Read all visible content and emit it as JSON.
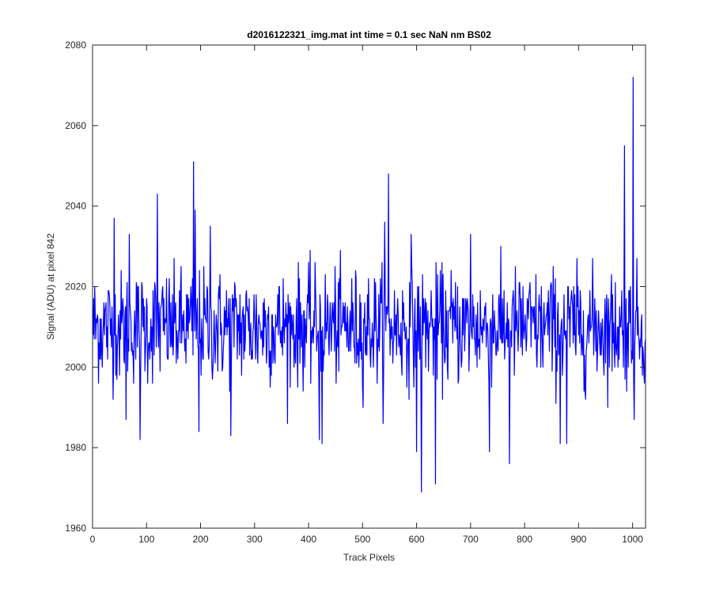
{
  "chart_data": {
    "type": "line",
    "title": "d2016122321_img.mat int time = 0.1 sec  NaN nm BS02",
    "xlabel": "Track Pixels",
    "ylabel": "Signal (ADU) at pixel 842",
    "xlim": [
      0,
      1024
    ],
    "ylim": [
      1960,
      2080
    ],
    "xticks": [
      0,
      100,
      200,
      300,
      400,
      500,
      600,
      700,
      800,
      900,
      1000
    ],
    "yticks": [
      1960,
      1980,
      2000,
      2020,
      2040,
      2060,
      2080
    ],
    "grid": false,
    "series": [
      {
        "color": "#0000ff",
        "x_start": 1,
        "x_step": 1,
        "count": 1024,
        "baseline": 2010,
        "noise_sd": 7,
        "features": [
          {
            "x": 40,
            "y": 2037
          },
          {
            "x": 62,
            "y": 1987
          },
          {
            "x": 68,
            "y": 2033
          },
          {
            "x": 88,
            "y": 1982
          },
          {
            "x": 120,
            "y": 2043
          },
          {
            "x": 187,
            "y": 2051
          },
          {
            "x": 190,
            "y": 2039
          },
          {
            "x": 197,
            "y": 1984
          },
          {
            "x": 218,
            "y": 2035
          },
          {
            "x": 256,
            "y": 1983
          },
          {
            "x": 420,
            "y": 1982
          },
          {
            "x": 425,
            "y": 1981
          },
          {
            "x": 541,
            "y": 2036
          },
          {
            "x": 548,
            "y": 2048
          },
          {
            "x": 590,
            "y": 2033
          },
          {
            "x": 600,
            "y": 1979
          },
          {
            "x": 609,
            "y": 1969
          },
          {
            "x": 635,
            "y": 1971
          },
          {
            "x": 700,
            "y": 2033
          },
          {
            "x": 735,
            "y": 1979
          },
          {
            "x": 772,
            "y": 1976
          },
          {
            "x": 866,
            "y": 1981
          },
          {
            "x": 878,
            "y": 1981
          },
          {
            "x": 985,
            "y": 2055
          },
          {
            "x": 1001,
            "y": 2072
          },
          {
            "x": 1003,
            "y": 1987
          }
        ]
      }
    ]
  }
}
